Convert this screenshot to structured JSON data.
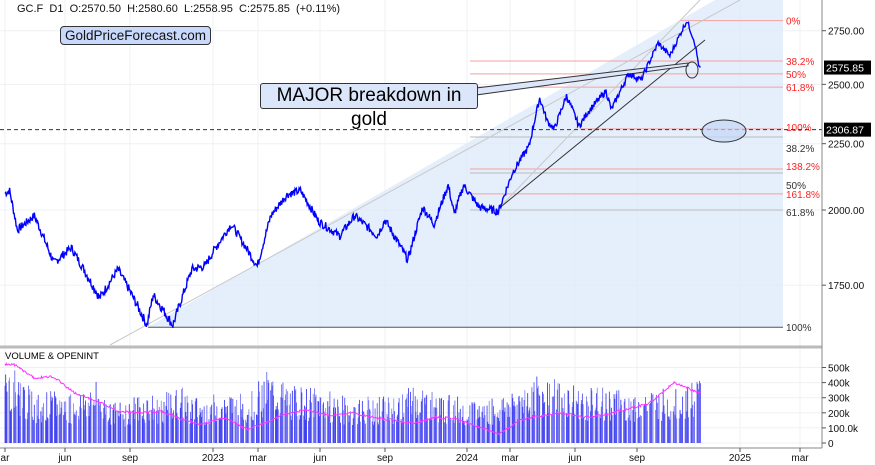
{
  "header": {
    "symbol": "GC.F",
    "interval": "D1",
    "open": "O:2570.50",
    "high": "H:2580.60",
    "low": "L:2558.95",
    "close": "C:2575.85",
    "change": "(+0.11%)"
  },
  "brand": "GoldPriceForecast.com",
  "annotation": "MAJOR breakdown in gold",
  "colors": {
    "price": "#0000ff",
    "volume": "#3a3af0",
    "open_interest": "#ff33ff",
    "fib_red": "#ff2222",
    "fib_black": "#333333",
    "shade": "#dce9fb"
  },
  "chart_data": [
    {
      "type": "line",
      "pane": "price",
      "y_scale": "log",
      "ylim": [
        1580,
        2830
      ],
      "y_ticks": [
        "2750.00",
        "2500.00",
        "2250.00",
        "2000.00",
        "1750.00"
      ],
      "y_tick_values": [
        2750,
        2500,
        2250,
        2000,
        1750
      ],
      "x_ticks": [
        "ar",
        "jun",
        "sep",
        "2023",
        "mar",
        "jun",
        "sep",
        "2024",
        "mar",
        "jun",
        "sep",
        "2025",
        "mar"
      ],
      "x_tick_dates": [
        "2022-03-01",
        "2022-06-01",
        "2022-09-01",
        "2023-01-01",
        "2023-03-01",
        "2023-06-01",
        "2023-09-01",
        "2024-01-01",
        "2024-03-01",
        "2024-06-01",
        "2024-09-01",
        "2025-01-01",
        "2025-03-01"
      ],
      "grid": true,
      "price_labels": [
        {
          "text": "2575.85",
          "value": 2575.85
        },
        {
          "text": "2306.87",
          "value": 2306.87,
          "dashed": true
        }
      ],
      "fib_red": [
        {
          "label": "0%",
          "value": 2800
        },
        {
          "label": "38.2%",
          "value": 2606
        },
        {
          "label": "50%",
          "value": 2547
        },
        {
          "label": "61.8%",
          "value": 2488
        },
        {
          "label": "100%",
          "value": 2310
        },
        {
          "label": "138.2%",
          "value": 2151
        },
        {
          "label": "161.8%",
          "value": 2058
        }
      ],
      "fib_black": [
        {
          "label": "38.2%",
          "value": 2277
        },
        {
          "label": "50%",
          "value": 2136
        },
        {
          "label": "61.8%",
          "value": 2000
        },
        {
          "label": "100%",
          "value": 1624
        }
      ],
      "series": [
        {
          "points": [
            [
              "2022-03-01",
              2060
            ],
            [
              "2022-03-08",
              2070
            ],
            [
              "2022-03-20",
              1930
            ],
            [
              "2022-04-15",
              1980
            ],
            [
              "2022-05-15",
              1820
            ],
            [
              "2022-06-10",
              1870
            ],
            [
              "2022-07-20",
              1710
            ],
            [
              "2022-08-15",
              1800
            ],
            [
              "2022-09-26",
              1630
            ],
            [
              "2022-10-05",
              1720
            ],
            [
              "2022-11-03",
              1630
            ],
            [
              "2022-12-01",
              1800
            ],
            [
              "2022-12-20",
              1810
            ],
            [
              "2023-01-25",
              1950
            ],
            [
              "2023-02-28",
              1810
            ],
            [
              "2023-03-20",
              1980
            ],
            [
              "2023-04-13",
              2055
            ],
            [
              "2023-05-03",
              2070
            ],
            [
              "2023-05-30",
              1960
            ],
            [
              "2023-06-29",
              1910
            ],
            [
              "2023-07-20",
              1980
            ],
            [
              "2023-08-21",
              1910
            ],
            [
              "2023-09-01",
              1965
            ],
            [
              "2023-10-05",
              1830
            ],
            [
              "2023-10-27",
              2010
            ],
            [
              "2023-11-13",
              1950
            ],
            [
              "2023-12-04",
              2090
            ],
            [
              "2023-12-13",
              1985
            ],
            [
              "2023-12-27",
              2090
            ],
            [
              "2024-01-18",
              2010
            ],
            [
              "2024-02-14",
              1995
            ],
            [
              "2024-03-05",
              2140
            ],
            [
              "2024-03-28",
              2240
            ],
            [
              "2024-04-12",
              2440
            ],
            [
              "2024-04-23",
              2340
            ],
            [
              "2024-05-03",
              2310
            ],
            [
              "2024-05-20",
              2450
            ],
            [
              "2024-06-07",
              2320
            ],
            [
              "2024-06-20",
              2380
            ],
            [
              "2024-07-17",
              2470
            ],
            [
              "2024-07-25",
              2390
            ],
            [
              "2024-08-20",
              2550
            ],
            [
              "2024-09-06",
              2520
            ],
            [
              "2024-09-26",
              2690
            ],
            [
              "2024-10-10",
              2630
            ],
            [
              "2024-10-30",
              2800
            ],
            [
              "2024-11-08",
              2700
            ],
            [
              "2024-11-14",
              2570
            ],
            [
              "2024-11-15",
              2575.85
            ]
          ]
        }
      ]
    },
    {
      "type": "bar",
      "pane": "volume",
      "title": "VOLUME & OPENINT",
      "ylim": [
        0,
        560
      ],
      "y_ticks": [
        "500k",
        "400k",
        "300k",
        "200k",
        "100.0k",
        "0"
      ],
      "y_tick_values": [
        500,
        400,
        300,
        200,
        100,
        0
      ],
      "months": [
        "2022-03",
        "2022-04",
        "2022-05",
        "2022-06",
        "2022-07",
        "2022-08",
        "2022-09",
        "2022-10",
        "2022-11",
        "2022-12",
        "2023-01",
        "2023-02",
        "2023-03",
        "2023-04",
        "2023-05",
        "2023-06",
        "2023-07",
        "2023-08",
        "2023-09",
        "2023-10",
        "2023-11",
        "2023-12",
        "2024-01",
        "2024-02",
        "2024-03",
        "2024-04",
        "2024-05",
        "2024-06",
        "2024-07",
        "2024-08",
        "2024-09",
        "2024-10",
        "2024-11"
      ],
      "series": [
        {
          "key": "volume",
          "values": [
            350,
            230,
            240,
            230,
            280,
            180,
            230,
            220,
            260,
            200,
            240,
            230,
            330,
            270,
            260,
            240,
            200,
            220,
            210,
            280,
            230,
            220,
            200,
            210,
            280,
            320,
            280,
            250,
            260,
            240,
            250,
            250,
            320
          ]
        },
        {
          "key": "open_interest",
          "type": "line",
          "values": [
            520,
            430,
            440,
            330,
            280,
            210,
            200,
            210,
            160,
            120,
            170,
            90,
            140,
            200,
            220,
            180,
            200,
            170,
            150,
            130,
            170,
            160,
            110,
            60,
            150,
            180,
            200,
            170,
            190,
            220,
            260,
            400,
            330
          ]
        }
      ]
    }
  ]
}
